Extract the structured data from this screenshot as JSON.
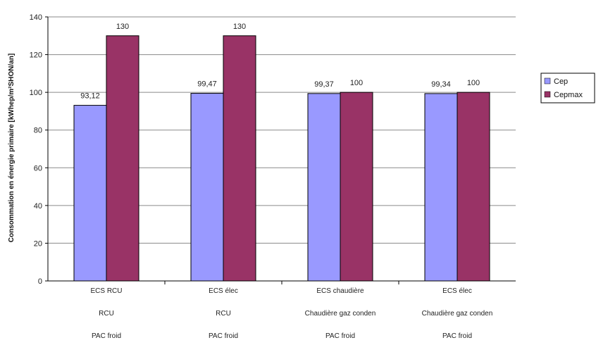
{
  "chart_data": {
    "type": "bar",
    "categories": [
      [
        "ECS RCU",
        "RCU",
        "PAC froid"
      ],
      [
        "ECS élec",
        "RCU",
        "PAC froid"
      ],
      [
        "ECS chaudière",
        "Chaudière gaz conden",
        "PAC froid"
      ],
      [
        "ECS élec",
        "Chaudière gaz conden",
        "PAC froid"
      ]
    ],
    "series": [
      {
        "name": "Cep",
        "values": [
          93.12,
          99.47,
          99.37,
          99.34
        ],
        "labels": [
          "93,12",
          "99,47",
          "99,37",
          "99,34"
        ],
        "color": "#9999ff"
      },
      {
        "name": "Cepmax",
        "values": [
          130,
          130,
          100,
          100
        ],
        "labels": [
          "130",
          "130",
          "100",
          "100"
        ],
        "color": "#993366"
      }
    ],
    "ylabel": "Consommation en énergie primaire [kWhep/m²SHON/an]",
    "ylim": [
      0,
      140
    ],
    "yticks": [
      0,
      20,
      40,
      60,
      80,
      100,
      120,
      140
    ],
    "grid": true,
    "legend": "right"
  }
}
